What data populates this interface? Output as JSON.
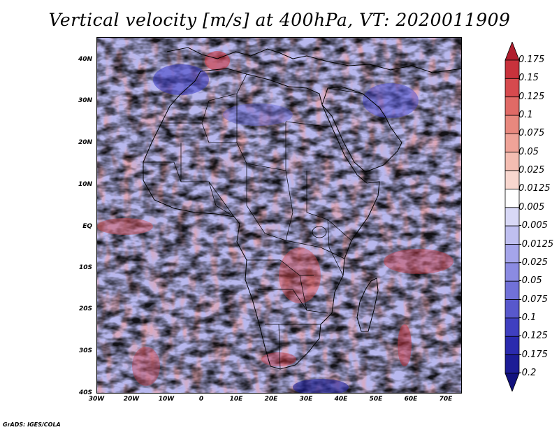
{
  "title": "Vertical velocity [m/s] at 400hPa, VT: 2020011909",
  "credit": "GrADS: IGES/COLA",
  "map": {
    "lon_range": [
      -30,
      75
    ],
    "lat_range": [
      -40,
      45
    ],
    "lat_labels": [
      "40N",
      "30N",
      "20N",
      "10N",
      "EQ",
      "10S",
      "20S",
      "30S",
      "40S"
    ],
    "lat_values": [
      40,
      30,
      20,
      10,
      0,
      -10,
      -20,
      -30,
      -40
    ],
    "lon_labels": [
      "30W",
      "20W",
      "10W",
      "0",
      "10E",
      "20E",
      "30E",
      "40E",
      "50E",
      "60E",
      "70E"
    ],
    "lon_values": [
      -30,
      -20,
      -10,
      0,
      10,
      20,
      30,
      40,
      50,
      60,
      70
    ]
  },
  "colorbar": {
    "levels": [
      "0.175",
      "0.15",
      "0.125",
      "0.1",
      "0.075",
      "0.05",
      "0.025",
      "0.0125",
      "0.005",
      "-0.005",
      "-0.0125",
      "-0.025",
      "-0.05",
      "-0.075",
      "-0.1",
      "-0.125",
      "-0.175",
      "-0.2"
    ],
    "colors": [
      "#b01e2e",
      "#c8323c",
      "#d64a4e",
      "#e06a66",
      "#e8887e",
      "#efa398",
      "#f4bdb2",
      "#f8d7cf",
      "#ffffff",
      "#d8d8f6",
      "#bfbff0",
      "#a5a5ea",
      "#8b8be2",
      "#7171d8",
      "#5858cc",
      "#3f3fc0",
      "#2a2aae",
      "#1c1c96",
      "#12127e"
    ]
  }
}
